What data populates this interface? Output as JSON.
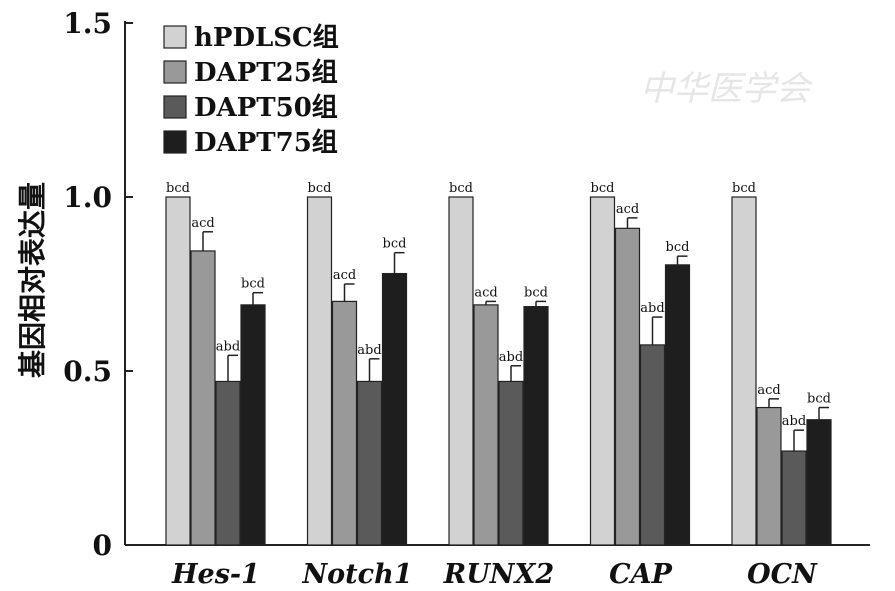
{
  "chart_data": {
    "type": "bar",
    "title": "",
    "xlabel": "",
    "ylabel": "基因相对表达量",
    "ylim": [
      0,
      1.5
    ],
    "yticks": [
      0,
      0.5,
      1.0,
      1.5
    ],
    "ytick_labels": [
      "0",
      "0.5",
      "1.0",
      "1.5"
    ],
    "legend_position": "top-left",
    "categories": [
      "Hes-1",
      "Notch1",
      "RUNX2",
      "CAP",
      "OCN"
    ],
    "series": [
      {
        "name": "hPDLSC组",
        "color": "#d2d2d2",
        "values": [
          1.0,
          1.0,
          1.0,
          1.0,
          1.0
        ],
        "errors": [
          0,
          0,
          0,
          0,
          0
        ],
        "labels": [
          "bcd",
          "bcd",
          "bcd",
          "bcd",
          "bcd"
        ]
      },
      {
        "name": "DAPT25组",
        "color": "#999999",
        "values": [
          0.845,
          0.7,
          0.69,
          0.91,
          0.395
        ],
        "errors": [
          0.055,
          0.05,
          0.01,
          0.03,
          0.025
        ],
        "labels": [
          "acd",
          "acd",
          "acd",
          "acd",
          "acd"
        ]
      },
      {
        "name": "DAPT50组",
        "color": "#5a5a5a",
        "values": [
          0.47,
          0.47,
          0.47,
          0.575,
          0.27
        ],
        "errors": [
          0.075,
          0.065,
          0.045,
          0.08,
          0.06
        ],
        "labels": [
          "abd",
          "abd",
          "abd",
          "abd",
          "abd"
        ]
      },
      {
        "name": "DAPT75组",
        "color": "#1e1e1e",
        "values": [
          0.69,
          0.78,
          0.685,
          0.805,
          0.36
        ],
        "errors": [
          0.035,
          0.06,
          0.015,
          0.025,
          0.035
        ],
        "labels": [
          "bcd",
          "bcd",
          "bcd",
          "bcd",
          "bcd"
        ]
      }
    ]
  },
  "watermark": "中华医学会"
}
